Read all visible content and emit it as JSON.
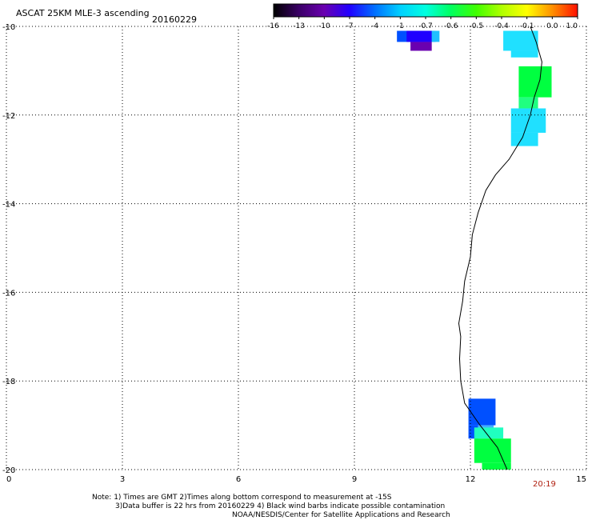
{
  "header": {
    "title": "ASCAT 25KM MLE-3 ascending",
    "date": "20160229"
  },
  "colorbar": {
    "labels": [
      "-16",
      "-13",
      "-10",
      "-7",
      "-4",
      "-1",
      "-0.7",
      "-0.6",
      "-0.5",
      "-0.4",
      "-0.1",
      "0.0",
      "1.0"
    ],
    "colors": [
      "#000000",
      "#3a0066",
      "#6a00b0",
      "#2000ff",
      "#0070ff",
      "#00d0ff",
      "#00ffe0",
      "#00ff60",
      "#40ff00",
      "#b0ff00",
      "#ffff00",
      "#ff9000",
      "#ff1000"
    ]
  },
  "axes": {
    "x_ticks": [
      "0",
      "3",
      "6",
      "9",
      "12",
      "15"
    ],
    "y_ticks": [
      "-10",
      "-12",
      "-14",
      "-16",
      "-18",
      "-20"
    ]
  },
  "footer": {
    "note_line1": "Note: 1) Times are GMT 2)Times along bottom correspond to measurement at -15S",
    "note_line2": "3)Data buffer is 22 hrs from 20160229 4) Black wind barbs indicate possible contamination",
    "credit": "NOAA/NESDIS/Center for Satellite Applications and Research",
    "time": "20:19"
  },
  "chart_data": {
    "type": "heatmap",
    "xlim": [
      0,
      15
    ],
    "ylim": [
      -20,
      -10
    ],
    "grid": true,
    "coastline": [
      [
        13.55,
        -10.0
      ],
      [
        13.7,
        -10.35
      ],
      [
        13.85,
        -10.8
      ],
      [
        13.8,
        -11.2
      ],
      [
        13.65,
        -11.6
      ],
      [
        13.55,
        -12.0
      ],
      [
        13.35,
        -12.5
      ],
      [
        13.0,
        -13.0
      ],
      [
        12.65,
        -13.35
      ],
      [
        12.4,
        -13.7
      ],
      [
        12.2,
        -14.2
      ],
      [
        12.05,
        -14.7
      ],
      [
        12.0,
        -15.2
      ],
      [
        11.85,
        -15.75
      ],
      [
        11.8,
        -16.2
      ],
      [
        11.7,
        -16.7
      ],
      [
        11.75,
        -17.0
      ],
      [
        11.72,
        -17.5
      ],
      [
        11.75,
        -18.0
      ],
      [
        11.85,
        -18.5
      ],
      [
        12.25,
        -19.0
      ],
      [
        12.7,
        -19.5
      ],
      [
        12.95,
        -20.0
      ]
    ],
    "cells": [
      {
        "lon": [
          10.1,
          11.1
        ],
        "lat": [
          -10.35,
          -10.1
        ],
        "color": "#0050ff"
      },
      {
        "lon": [
          10.35,
          11.0
        ],
        "lat": [
          -10.35,
          -10.1
        ],
        "color": "#2000ff"
      },
      {
        "lon": [
          10.45,
          11.0
        ],
        "lat": [
          -10.55,
          -10.35
        ],
        "color": "#6a00b0"
      },
      {
        "lon": [
          11.0,
          11.2
        ],
        "lat": [
          -10.35,
          -10.1
        ],
        "color": "#20c0ff"
      },
      {
        "lon": [
          12.85,
          13.75
        ],
        "lat": [
          -10.55,
          -10.1
        ],
        "color": "#20e0ff"
      },
      {
        "lon": [
          13.05,
          13.75
        ],
        "lat": [
          -10.7,
          -10.55
        ],
        "color": "#20e0ff"
      },
      {
        "lon": [
          13.25,
          14.1
        ],
        "lat": [
          -11.6,
          -10.9
        ],
        "color": "#00ff40"
      },
      {
        "lon": [
          13.25,
          13.75
        ],
        "lat": [
          -11.85,
          -11.6
        ],
        "color": "#20ff80"
      },
      {
        "lon": [
          13.05,
          13.95
        ],
        "lat": [
          -12.4,
          -11.85
        ],
        "color": "#20e0ff"
      },
      {
        "lon": [
          13.05,
          13.75
        ],
        "lat": [
          -12.7,
          -12.4
        ],
        "color": "#20e0ff"
      },
      {
        "lon": [
          11.95,
          12.65
        ],
        "lat": [
          -19.0,
          -18.4
        ],
        "color": "#0050ff"
      },
      {
        "lon": [
          11.95,
          12.2
        ],
        "lat": [
          -19.3,
          -19.0
        ],
        "color": "#0050ff"
      },
      {
        "lon": [
          12.2,
          12.6
        ],
        "lat": [
          -19.1,
          -19.0
        ],
        "color": "#40b0ff"
      },
      {
        "lon": [
          12.1,
          12.85
        ],
        "lat": [
          -19.3,
          -19.05
        ],
        "color": "#20ffc0"
      },
      {
        "lon": [
          12.1,
          13.05
        ],
        "lat": [
          -19.85,
          -19.3
        ],
        "color": "#00ff40"
      },
      {
        "lon": [
          12.3,
          13.05
        ],
        "lat": [
          -20.0,
          -19.85
        ],
        "color": "#00ff40"
      }
    ]
  }
}
